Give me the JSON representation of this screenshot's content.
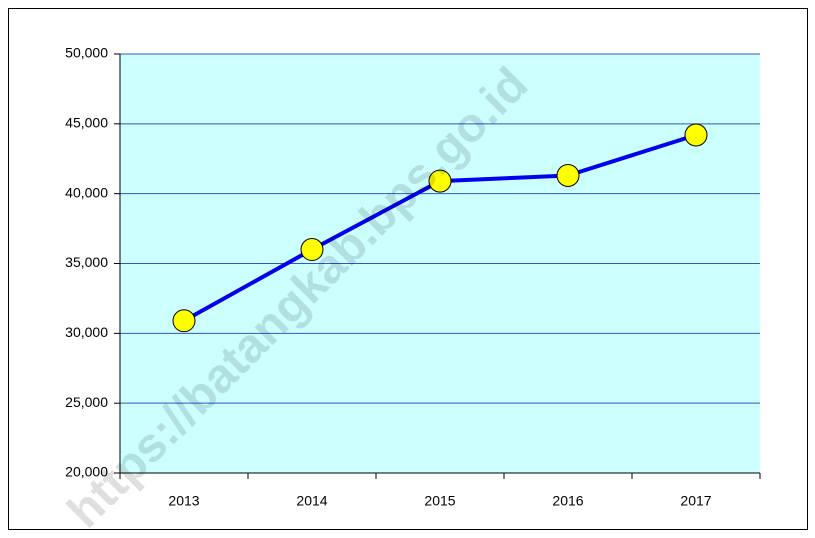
{
  "chart_data": {
    "type": "line",
    "categories": [
      "2013",
      "2014",
      "2015",
      "2016",
      "2017"
    ],
    "series": [
      {
        "name": null,
        "color": "#0000ee",
        "marker_color": "#ffff00",
        "values": [
          30900,
          36000,
          40900,
          41300,
          44200
        ]
      }
    ],
    "ylim": [
      20000,
      50000
    ],
    "yticks": [
      {
        "value": 20000,
        "label": "20,000"
      },
      {
        "value": 25000,
        "label": "25,000"
      },
      {
        "value": 30000,
        "label": "30,000"
      },
      {
        "value": 35000,
        "label": "35,000"
      },
      {
        "value": 40000,
        "label": "40,000"
      },
      {
        "value": 45000,
        "label": "45,000"
      },
      {
        "value": 50000,
        "label": "50,000"
      }
    ],
    "grid": true,
    "plot_background": "#ccffff",
    "watermark": "https://batangkab.bps.go.id"
  }
}
